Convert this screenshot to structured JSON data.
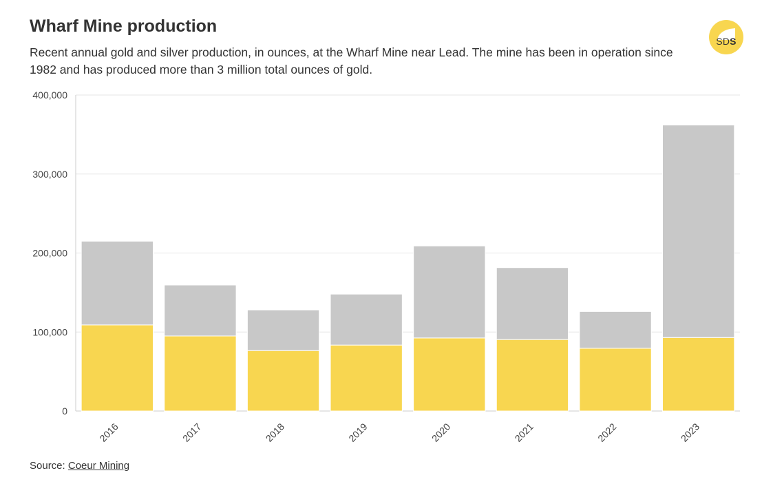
{
  "header": {
    "title": "Wharf Mine production",
    "subtitle": "Recent annual gold and silver production, in ounces, at the Wharf Mine near Lead. The mine has been in operation since 1982 and has produced more than 3 million total ounces of gold."
  },
  "logo": {
    "text_plain": "SD",
    "text_bold": "S",
    "color": "#f8d650"
  },
  "source": {
    "label": "Source: ",
    "link_text": "Coeur Mining"
  },
  "chart_data": {
    "type": "bar",
    "stacked": true,
    "categories": [
      "2016",
      "2017",
      "2018",
      "2019",
      "2020",
      "2021",
      "2022",
      "2023"
    ],
    "series": [
      {
        "color": "#f8d650",
        "values": [
          109000,
          95000,
          76500,
          83500,
          92500,
          90500,
          79500,
          93000
        ]
      },
      {
        "color": "#c8c8c8",
        "values": [
          106000,
          64500,
          51500,
          64500,
          116500,
          91000,
          46500,
          269000
        ]
      }
    ],
    "y_ticks": [
      "0",
      "100,000",
      "200,000",
      "300,000",
      "400,000"
    ],
    "ylim": [
      0,
      400000
    ],
    "grid": true
  }
}
